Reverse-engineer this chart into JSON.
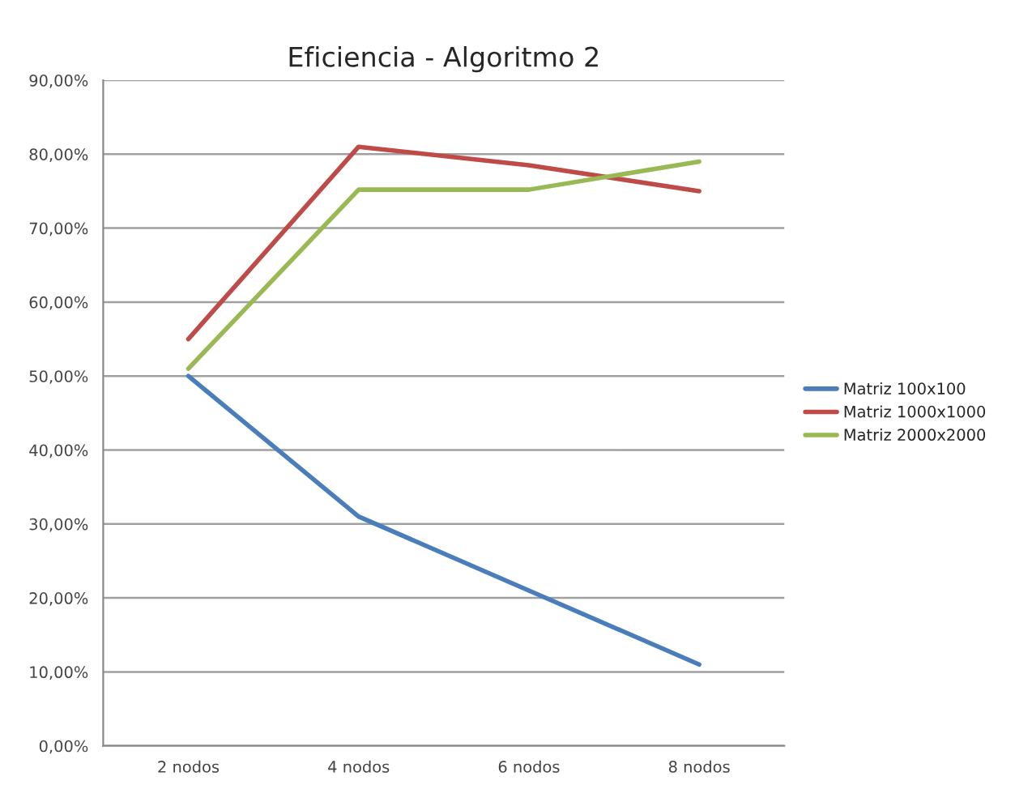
{
  "chart_data": {
    "type": "line",
    "title": "Eficiencia - Algoritmo 2",
    "categories": [
      "2 nodos",
      "4 nodos",
      "6 nodos",
      "8 nodos"
    ],
    "series": [
      {
        "name": "Matriz 100x100",
        "color": "#4a7ebb",
        "values": [
          50,
          31,
          21,
          11
        ]
      },
      {
        "name": "Matriz 1000x1000",
        "color": "#be4b48",
        "values": [
          55,
          81,
          78.5,
          75
        ]
      },
      {
        "name": "Matriz 2000x2000",
        "color": "#98b954",
        "values": [
          51,
          75.2,
          75.2,
          79
        ]
      }
    ],
    "ylim": [
      0,
      90
    ],
    "yticks": [
      {
        "value": 0,
        "label": "0,00%"
      },
      {
        "value": 10,
        "label": "10,00%"
      },
      {
        "value": 20,
        "label": "20,00%"
      },
      {
        "value": 30,
        "label": "30,00%"
      },
      {
        "value": 40,
        "label": "40,00%"
      },
      {
        "value": 50,
        "label": "50,00%"
      },
      {
        "value": 60,
        "label": "60,00%"
      },
      {
        "value": 70,
        "label": "70,00%"
      },
      {
        "value": 80,
        "label": "80,00%"
      },
      {
        "value": 90,
        "label": "90,00%"
      }
    ],
    "grid": "y",
    "legend": "right",
    "marker": "none",
    "line_style": "solid"
  }
}
